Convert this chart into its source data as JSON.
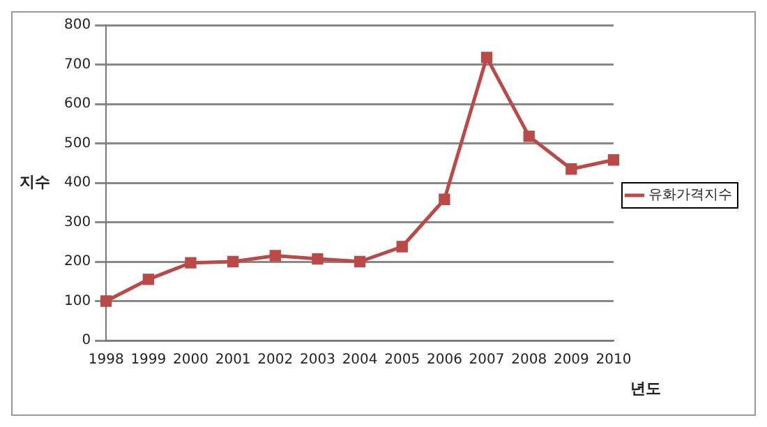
{
  "chart_data": {
    "type": "line",
    "xlabel": "년도",
    "ylabel": "지수",
    "categories": [
      "1998",
      "1999",
      "2000",
      "2001",
      "2002",
      "2003",
      "2004",
      "2005",
      "2006",
      "2007",
      "2008",
      "2009",
      "2010"
    ],
    "series": [
      {
        "name": "유화가격지수",
        "color": "#b94a48",
        "values": [
          100,
          155,
          197,
          200,
          215,
          207,
          200,
          238,
          358,
          718,
          518,
          435,
          458
        ]
      }
    ],
    "ylim": [
      0,
      800
    ],
    "yticks": [
      0,
      100,
      200,
      300,
      400,
      500,
      600,
      700,
      800
    ],
    "grid": "y",
    "legend": "right",
    "marker": "square",
    "line_style": "solid"
  }
}
